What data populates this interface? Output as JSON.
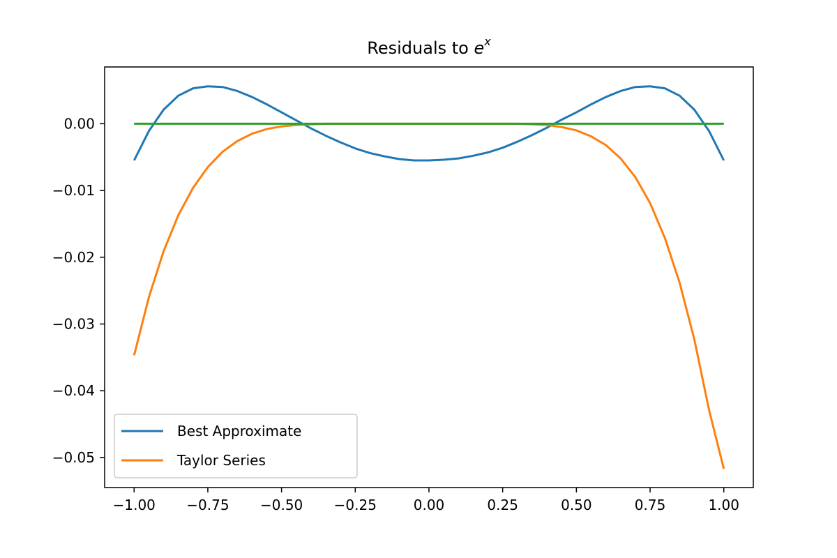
{
  "chart_data": {
    "type": "line",
    "title": {
      "prefix": "Residuals to ",
      "base": "e",
      "superscript": "x"
    },
    "xlabel": "",
    "ylabel": "",
    "xlim": [
      -1.1,
      1.1
    ],
    "ylim": [
      -0.0545,
      0.0085
    ],
    "x_ticks": [
      -1.0,
      -0.75,
      -0.5,
      -0.25,
      0.0,
      0.25,
      0.5,
      0.75,
      1.0
    ],
    "x_tick_labels": [
      "−1.00",
      "−0.75",
      "−0.50",
      "−0.25",
      "0.00",
      "0.25",
      "0.50",
      "0.75",
      "1.00"
    ],
    "y_ticks": [
      0.0,
      -0.01,
      -0.02,
      -0.03,
      -0.04,
      -0.05
    ],
    "y_tick_labels": [
      "0.00",
      "−0.01",
      "−0.02",
      "−0.03",
      "−0.04",
      "−0.05"
    ],
    "grid": false,
    "legend_placement": "lower-left",
    "x": [
      -1.0,
      -0.95,
      -0.9,
      -0.85,
      -0.8,
      -0.75,
      -0.7,
      -0.65,
      -0.6,
      -0.55,
      -0.5,
      -0.45,
      -0.4,
      -0.35,
      -0.3,
      -0.25,
      -0.2,
      -0.15,
      -0.1,
      -0.05,
      0.0,
      0.05,
      0.1,
      0.15,
      0.2,
      0.25,
      0.3,
      0.35,
      0.4,
      0.45,
      0.5,
      0.55,
      0.6,
      0.65,
      0.7,
      0.75,
      0.8,
      0.85,
      0.9,
      0.95,
      1.0
    ],
    "series": [
      {
        "name": "Best Approximate",
        "color": "#1f77b4",
        "values": [
          -0.0055,
          -0.0011,
          0.0021,
          0.0042,
          0.0053,
          0.0056,
          0.0055,
          0.0049,
          0.004,
          0.0029,
          0.0017,
          0.0005,
          -0.0007,
          -0.0018,
          -0.0028,
          -0.0037,
          -0.0044,
          -0.0049,
          -0.0053,
          -0.0055,
          -0.0055,
          -0.0054,
          -0.0052,
          -0.0048,
          -0.0043,
          -0.0036,
          -0.0027,
          -0.0017,
          -0.0006,
          0.0006,
          0.0017,
          0.0029,
          0.004,
          0.0049,
          0.0055,
          0.0056,
          0.0053,
          0.0042,
          0.0021,
          -0.0011,
          -0.0055
        ]
      },
      {
        "name": "Taylor Series",
        "color": "#ff7f0e",
        "values": [
          -0.0347,
          -0.026,
          -0.0191,
          -0.0137,
          -0.0096,
          -0.0065,
          -0.0042,
          -0.0026,
          -0.0015,
          -0.0008,
          -0.0004,
          -0.0002,
          -0.0001,
          0.0,
          0.0,
          0.0,
          0.0,
          0.0,
          0.0,
          0.0,
          0.0,
          0.0,
          0.0,
          0.0,
          0.0,
          0.0,
          0.0,
          -0.0001,
          -0.0002,
          -0.0005,
          -0.001,
          -0.0019,
          -0.0032,
          -0.0052,
          -0.008,
          -0.0119,
          -0.0171,
          -0.0238,
          -0.0323,
          -0.0429,
          -0.0517
        ]
      },
      {
        "name": "",
        "color": "#2ca02c",
        "values": [
          0.0,
          0.0,
          0.0,
          0.0,
          0.0,
          0.0,
          0.0,
          0.0,
          0.0,
          0.0,
          0.0,
          0.0,
          0.0,
          0.0,
          0.0,
          0.0,
          0.0,
          0.0,
          0.0,
          0.0,
          0.0,
          0.0,
          0.0,
          0.0,
          0.0,
          0.0,
          0.0,
          0.0,
          0.0,
          0.0,
          0.0,
          0.0,
          0.0,
          0.0,
          0.0,
          0.0,
          0.0,
          0.0,
          0.0,
          0.0,
          0.0
        ]
      }
    ]
  }
}
